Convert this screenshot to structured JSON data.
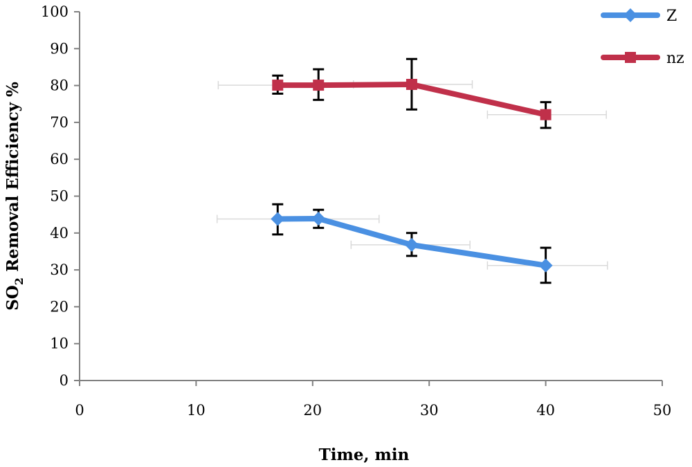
{
  "chart_data": {
    "type": "line",
    "title": "",
    "xlabel": "Time, min",
    "ylabel": {
      "prefix": "SO",
      "subscript": "2",
      "suffix": " Removal Efficiency %"
    },
    "xlim": [
      0,
      50
    ],
    "ylim": [
      0,
      100
    ],
    "x_ticks": [
      "0",
      "10",
      "20",
      "30",
      "40",
      "50"
    ],
    "y_ticks": [
      "0",
      "10",
      "20",
      "30",
      "40",
      "50",
      "60",
      "70",
      "80",
      "90",
      "100"
    ],
    "grid": false,
    "legend_position": "top-right",
    "series": [
      {
        "name": "Z",
        "color": "#4a90e2",
        "marker": "diamond",
        "points": [
          {
            "x": 17,
            "y": 43.8,
            "y_err": [
              4.2,
              4.0
            ],
            "x_err": [
              5.2,
              8.7
            ]
          },
          {
            "x": 20.5,
            "y": 43.9,
            "y_err": [
              2.5,
              2.4
            ],
            "x_err": [
              0,
              0
            ]
          },
          {
            "x": 28.5,
            "y": 36.8,
            "y_err": [
              3.0,
              3.2
            ],
            "x_err": [
              5.2,
              5.0
            ]
          },
          {
            "x": 40,
            "y": 31.2,
            "y_err": [
              4.7,
              4.8
            ],
            "x_err": [
              5.0,
              5.3
            ]
          }
        ]
      },
      {
        "name": "nz",
        "color": "#c0304a",
        "marker": "square",
        "points": [
          {
            "x": 17,
            "y": 80.1,
            "y_err": [
              2.3,
              2.6
            ],
            "x_err": [
              5.1,
              0
            ]
          },
          {
            "x": 20.5,
            "y": 80.1,
            "y_err": [
              4.0,
              4.3
            ],
            "x_err": [
              0,
              0
            ]
          },
          {
            "x": 28.5,
            "y": 80.3,
            "y_err": [
              6.8,
              6.9
            ],
            "x_err": [
              5.0,
              5.2
            ]
          },
          {
            "x": 40,
            "y": 72.1,
            "y_err": [
              3.6,
              3.4
            ],
            "x_err": [
              5.0,
              5.2
            ]
          }
        ]
      }
    ]
  }
}
